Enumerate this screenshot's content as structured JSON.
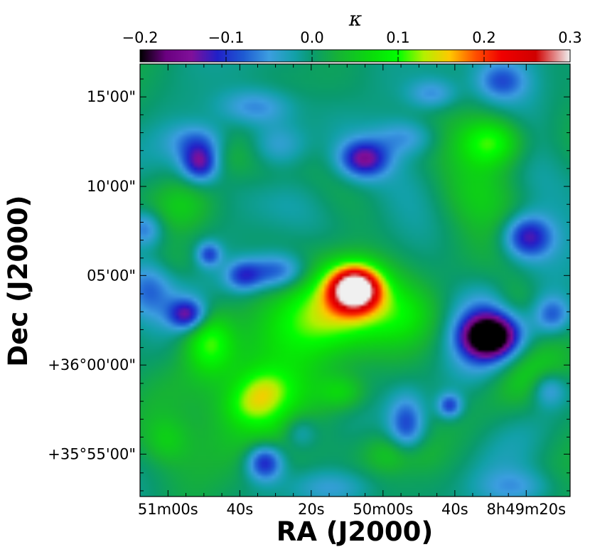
{
  "chart_data": {
    "type": "heatmap",
    "title": "",
    "xlabel": "RA (J2000)",
    "ylabel": "Dec (J2000)",
    "x_ticks": [
      "51m00s",
      "40s",
      "20s",
      "50m00s",
      "40s",
      "8h49m20s"
    ],
    "y_ticks": [
      "15'00\"",
      "10'00\"",
      "05'00\"",
      "+36°00'00\"",
      "+35°55'00\""
    ],
    "colorbar": {
      "label": "κ",
      "range": [
        -0.2,
        0.3
      ],
      "ticks": [
        "−0.2",
        "−0.1",
        "0.0",
        "0.1",
        "0.2",
        "0.3"
      ],
      "ticks_values": [
        -0.2,
        -0.1,
        0.0,
        0.1,
        0.2,
        0.3
      ],
      "stops": [
        {
          "v": -0.2,
          "color": "#000000"
        },
        {
          "v": -0.17,
          "color": "#6a0080"
        },
        {
          "v": -0.14,
          "color": "#80109a"
        },
        {
          "v": -0.11,
          "color": "#2020c8"
        },
        {
          "v": -0.08,
          "color": "#1e5ad2"
        },
        {
          "v": -0.05,
          "color": "#3c9ee0"
        },
        {
          "v": -0.02,
          "color": "#12a0a8"
        },
        {
          "v": 0.0,
          "color": "#0a9a6e"
        },
        {
          "v": 0.03,
          "color": "#16b236"
        },
        {
          "v": 0.07,
          "color": "#0adc0a"
        },
        {
          "v": 0.1,
          "color": "#00ff00"
        },
        {
          "v": 0.13,
          "color": "#b4f000"
        },
        {
          "v": 0.16,
          "color": "#ffc800"
        },
        {
          "v": 0.19,
          "color": "#ff5000"
        },
        {
          "v": 0.22,
          "color": "#f00000"
        },
        {
          "v": 0.26,
          "color": "#d00000"
        },
        {
          "v": 0.3,
          "color": "#f0f0f0"
        }
      ]
    },
    "background_kappa": -0.005,
    "features": [
      {
        "x": 0.5,
        "y": 0.52,
        "sx": 0.04,
        "sy": 0.035,
        "kappa": 0.3
      },
      {
        "x": 0.47,
        "y": 0.53,
        "sx": 0.09,
        "sy": 0.07,
        "kappa": 0.13
      },
      {
        "x": 0.41,
        "y": 0.6,
        "sx": 0.1,
        "sy": 0.05,
        "kappa": 0.06
      },
      {
        "x": 0.28,
        "y": 0.77,
        "sx": 0.14,
        "sy": 0.09,
        "kappa": 0.08
      },
      {
        "x": 0.16,
        "y": 0.64,
        "sx": 0.04,
        "sy": 0.05,
        "kappa": 0.1
      },
      {
        "x": 0.26,
        "y": 0.79,
        "sx": 0.04,
        "sy": 0.03,
        "kappa": 0.05
      },
      {
        "x": 0.29,
        "y": 0.75,
        "sx": 0.04,
        "sy": 0.03,
        "kappa": 0.05
      },
      {
        "x": 0.82,
        "y": 0.18,
        "sx": 0.05,
        "sy": 0.04,
        "kappa": 0.1
      },
      {
        "x": 0.78,
        "y": 0.3,
        "sx": 0.08,
        "sy": 0.06,
        "kappa": 0.06
      },
      {
        "x": 0.62,
        "y": 0.58,
        "sx": 0.06,
        "sy": 0.05,
        "kappa": 0.05
      },
      {
        "x": 0.1,
        "y": 0.33,
        "sx": 0.05,
        "sy": 0.05,
        "kappa": 0.05
      },
      {
        "x": 0.3,
        "y": 0.23,
        "sx": 0.06,
        "sy": 0.05,
        "kappa": 0.05
      },
      {
        "x": 0.9,
        "y": 0.72,
        "sx": 0.08,
        "sy": 0.05,
        "kappa": 0.05
      },
      {
        "x": 0.06,
        "y": 0.87,
        "sx": 0.04,
        "sy": 0.04,
        "kappa": 0.05
      },
      {
        "x": 0.81,
        "y": 0.63,
        "sx": 0.04,
        "sy": 0.03,
        "kappa": -0.19
      },
      {
        "x": 0.81,
        "y": 0.62,
        "sx": 0.06,
        "sy": 0.07,
        "kappa": -0.12
      },
      {
        "x": 0.29,
        "y": 0.92,
        "sx": 0.03,
        "sy": 0.03,
        "kappa": -0.13
      },
      {
        "x": 0.11,
        "y": 0.58,
        "sx": 0.03,
        "sy": 0.025,
        "kappa": -0.13
      },
      {
        "x": 0.9,
        "y": 0.4,
        "sx": 0.04,
        "sy": 0.035,
        "kappa": -0.13
      },
      {
        "x": 0.14,
        "y": 0.23,
        "sx": 0.03,
        "sy": 0.03,
        "kappa": -0.13
      },
      {
        "x": 0.52,
        "y": 0.22,
        "sx": 0.04,
        "sy": 0.03,
        "kappa": -0.13
      },
      {
        "x": 0.32,
        "y": 0.48,
        "sx": 0.05,
        "sy": 0.03,
        "kappa": -0.1
      },
      {
        "x": 0.24,
        "y": 0.49,
        "sx": 0.03,
        "sy": 0.025,
        "kappa": -0.09
      },
      {
        "x": 0.62,
        "y": 0.84,
        "sx": 0.03,
        "sy": 0.05,
        "kappa": -0.1
      },
      {
        "x": 0.72,
        "y": 0.79,
        "sx": 0.02,
        "sy": 0.02,
        "kappa": -0.1
      },
      {
        "x": 0.16,
        "y": 0.44,
        "sx": 0.02,
        "sy": 0.02,
        "kappa": -0.09
      },
      {
        "x": 0.01,
        "y": 0.38,
        "sx": 0.03,
        "sy": 0.03,
        "kappa": -0.08
      },
      {
        "x": 0.96,
        "y": 0.58,
        "sx": 0.03,
        "sy": 0.03,
        "kappa": -0.08
      },
      {
        "x": 0.95,
        "y": 0.75,
        "sx": 0.03,
        "sy": 0.03,
        "kappa": -0.08
      },
      {
        "x": 0.32,
        "y": 0.19,
        "sx": 0.05,
        "sy": 0.04,
        "kappa": -0.08
      },
      {
        "x": 0.14,
        "y": 0.18,
        "sx": 0.05,
        "sy": 0.03,
        "kappa": -0.07
      },
      {
        "x": 0.84,
        "y": 0.04,
        "sx": 0.04,
        "sy": 0.03,
        "kappa": -0.07
      },
      {
        "x": 0.27,
        "y": 0.1,
        "sx": 0.06,
        "sy": 0.03,
        "kappa": -0.07
      },
      {
        "x": 0.37,
        "y": 0.85,
        "sx": 0.03,
        "sy": 0.03,
        "kappa": -0.06
      },
      {
        "x": 0.02,
        "y": 0.52,
        "sx": 0.04,
        "sy": 0.05,
        "kappa": -0.07
      },
      {
        "x": 0.62,
        "y": 0.17,
        "sx": 0.05,
        "sy": 0.03,
        "kappa": -0.06
      },
      {
        "x": 0.68,
        "y": 0.07,
        "sx": 0.04,
        "sy": 0.025,
        "kappa": -0.06
      },
      {
        "x": 0.45,
        "y": 0.98,
        "sx": 0.07,
        "sy": 0.03,
        "kappa": -0.05
      },
      {
        "x": 0.88,
        "y": 0.98,
        "sx": 0.06,
        "sy": 0.03,
        "kappa": -0.05
      },
      {
        "x": 0.47,
        "y": 0.76,
        "sx": 0.04,
        "sy": 0.03,
        "kappa": 0.06
      },
      {
        "x": 0.6,
        "y": 0.9,
        "sx": 0.05,
        "sy": 0.03,
        "kappa": 0.05
      },
      {
        "x": 0.87,
        "y": 0.55,
        "sx": 0.04,
        "sy": 0.04,
        "kappa": 0.05
      },
      {
        "x": 0.2,
        "y": 0.2,
        "sx": 0.05,
        "sy": 0.04,
        "kappa": 0.04
      },
      {
        "x": 0.08,
        "y": 0.46,
        "sx": 0.05,
        "sy": 0.04,
        "kappa": 0.04
      }
    ]
  }
}
